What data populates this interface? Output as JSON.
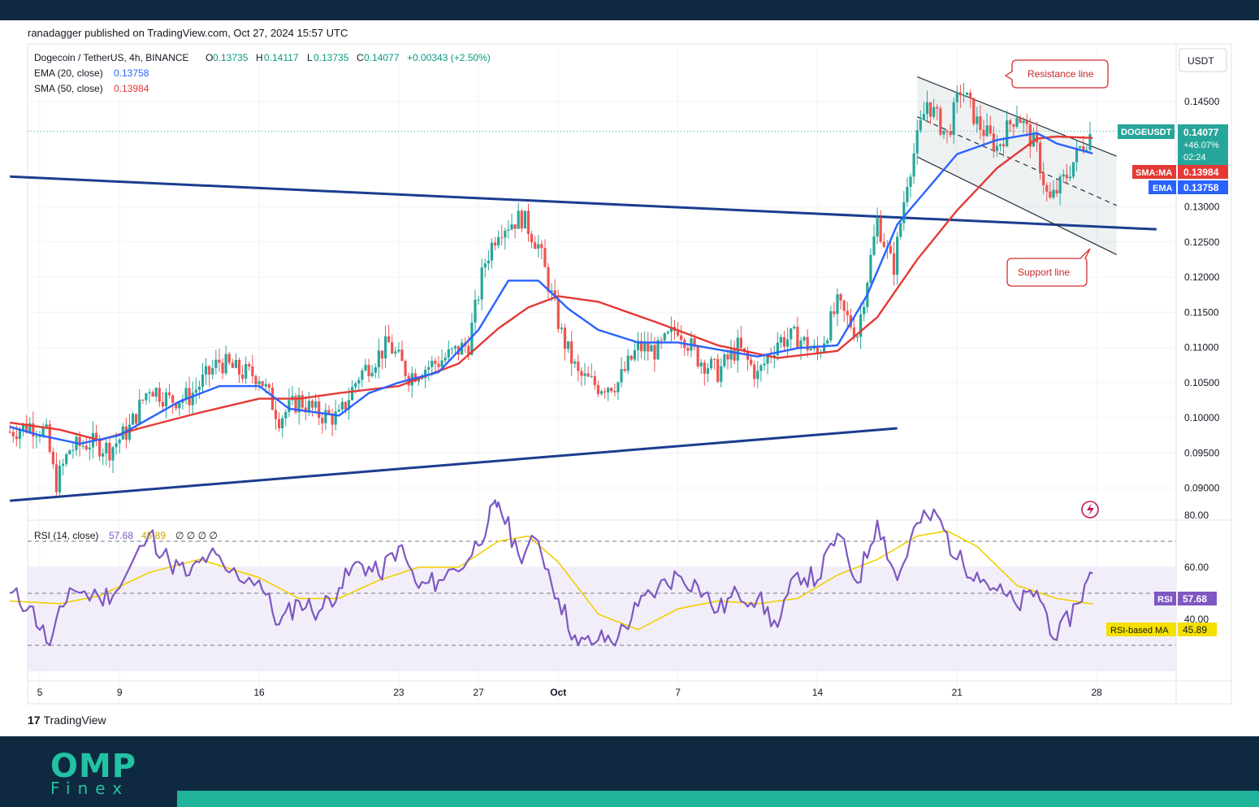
{
  "header": {
    "publisher": "ranadagger published on TradingView.com, Oct 27, 2024 15:57 UTC",
    "symbol": "Dogecoin / TetherUS, 4h, BINANCE",
    "o_label": "O",
    "o_value": "0.13735",
    "h_label": "H",
    "h_value": "0.14117",
    "l_label": "L",
    "l_value": "0.13735",
    "c_label": "C",
    "c_value": "0.14077",
    "change": "+0.00343 (+2.50%)",
    "ema_label": "EMA (20, close)",
    "ema_value": "0.13758",
    "sma_label": "SMA (50, close)",
    "sma_value": "0.13984",
    "rsi_label": "RSI (14, close)",
    "rsi_value": "57.68",
    "rsi_ma_value": "45.89",
    "rsi_extra": "∅ ∅ ∅ ∅"
  },
  "currency": "USDT",
  "price_tag": {
    "symbol": "DOGEUSDT",
    "price": "0.14077",
    "change": "+46.07%",
    "countdown": "02:24"
  },
  "sma_tag": {
    "label": "SMA:MA",
    "value": "0.13984"
  },
  "ema_tag": {
    "label": "EMA",
    "value": "0.13758"
  },
  "rsi_tag": {
    "label": "RSI",
    "value": "57.68"
  },
  "rsi_ma_tag": {
    "label": "RSI-based MA",
    "value": "45.89"
  },
  "annotations": {
    "resistance": "Resistance line",
    "support": "Support line"
  },
  "branding": {
    "tradingview": "TradingView",
    "omp": "OMP",
    "finex": "Finex"
  },
  "colors": {
    "ema": "#2962ff",
    "sma": "#e53935",
    "up": "#26a69a",
    "down": "#ef5350",
    "trendline": "#1a3d8f",
    "rsi": "#7e57c2",
    "rsi_ma": "#f0d000",
    "accent": "#1fb39a"
  },
  "chart_data": {
    "type": "candlestick",
    "price_axis": {
      "ticks": [
        "0.14500",
        "0.13000",
        "0.12500",
        "0.12000",
        "0.11500",
        "0.11000",
        "0.10500",
        "0.10000",
        "0.09500",
        "0.09000"
      ],
      "tick_values": [
        0.145,
        0.13,
        0.125,
        0.12,
        0.115,
        0.11,
        0.105,
        0.1,
        0.095,
        0.09
      ]
    },
    "time_axis": {
      "ticks": [
        "5",
        "9",
        "16",
        "23",
        "27",
        "Oct",
        "7",
        "14",
        "21",
        "28"
      ],
      "tick_days": [
        5,
        9,
        16,
        23,
        27,
        31,
        37,
        44,
        51,
        58
      ]
    },
    "rsi_axis": {
      "ticks": [
        "80.00",
        "60.00",
        "40.00"
      ],
      "tick_values": [
        80,
        60,
        40
      ],
      "bands": [
        70,
        50,
        30
      ]
    },
    "ema_series": [
      [
        3.5,
        0.0987
      ],
      [
        5,
        0.0975
      ],
      [
        7,
        0.0963
      ],
      [
        9,
        0.0975
      ],
      [
        12,
        0.1023
      ],
      [
        14,
        0.1045
      ],
      [
        16,
        0.1045
      ],
      [
        17.5,
        0.1013
      ],
      [
        20,
        0.1003
      ],
      [
        21.5,
        0.1035
      ],
      [
        23,
        0.105
      ],
      [
        25,
        0.1065
      ],
      [
        27,
        0.1125
      ],
      [
        28.5,
        0.1195
      ],
      [
        30,
        0.1195
      ],
      [
        31.5,
        0.1155
      ],
      [
        33,
        0.1125
      ],
      [
        35,
        0.1107
      ],
      [
        37,
        0.1107
      ],
      [
        39,
        0.1097
      ],
      [
        41,
        0.1087
      ],
      [
        43,
        0.1099
      ],
      [
        45,
        0.1103
      ],
      [
        46.5,
        0.1175
      ],
      [
        48,
        0.1275
      ],
      [
        49.5,
        0.1325
      ],
      [
        51,
        0.1375
      ],
      [
        53,
        0.1395
      ],
      [
        55,
        0.1405
      ],
      [
        56,
        0.139
      ],
      [
        57.8,
        0.1376
      ]
    ],
    "sma_series": [
      [
        3.5,
        0.0993
      ],
      [
        6,
        0.0983
      ],
      [
        8,
        0.0968
      ],
      [
        10,
        0.0985
      ],
      [
        13,
        0.1007
      ],
      [
        16,
        0.1027
      ],
      [
        18,
        0.1027
      ],
      [
        20,
        0.1035
      ],
      [
        23,
        0.1045
      ],
      [
        26,
        0.1077
      ],
      [
        28,
        0.1127
      ],
      [
        29.5,
        0.1157
      ],
      [
        31,
        0.1173
      ],
      [
        33,
        0.1165
      ],
      [
        36,
        0.1135
      ],
      [
        39,
        0.1103
      ],
      [
        42,
        0.1085
      ],
      [
        45,
        0.1095
      ],
      [
        47,
        0.1143
      ],
      [
        49,
        0.1225
      ],
      [
        51,
        0.1295
      ],
      [
        53,
        0.1355
      ],
      [
        55,
        0.1397
      ],
      [
        56,
        0.14
      ],
      [
        57.8,
        0.1398
      ]
    ],
    "price_path": [
      [
        3.5,
        0.098
      ],
      [
        4.5,
        0.099
      ],
      [
        5.3,
        0.098
      ],
      [
        5.8,
        0.0905
      ],
      [
        6.5,
        0.0955
      ],
      [
        7.5,
        0.0965
      ],
      [
        8.5,
        0.0955
      ],
      [
        9.5,
        0.0985
      ],
      [
        10.5,
        0.1045
      ],
      [
        11.5,
        0.1025
      ],
      [
        12.5,
        0.103
      ],
      [
        14,
        0.108
      ],
      [
        15,
        0.1065
      ],
      [
        16,
        0.106
      ],
      [
        17,
        0.1
      ],
      [
        18,
        0.1025
      ],
      [
        19,
        0.1005
      ],
      [
        20,
        0.1
      ],
      [
        21,
        0.106
      ],
      [
        22.5,
        0.1105
      ],
      [
        23.5,
        0.106
      ],
      [
        25,
        0.108
      ],
      [
        26.5,
        0.1105
      ],
      [
        27.3,
        0.122
      ],
      [
        28,
        0.127
      ],
      [
        29.2,
        0.1285
      ],
      [
        30,
        0.1245
      ],
      [
        30.6,
        0.118
      ],
      [
        31.2,
        0.1115
      ],
      [
        32,
        0.106
      ],
      [
        33,
        0.1045
      ],
      [
        34,
        0.105
      ],
      [
        35,
        0.11
      ],
      [
        36,
        0.1095
      ],
      [
        37,
        0.113
      ],
      [
        38,
        0.1085
      ],
      [
        39,
        0.1065
      ],
      [
        40,
        0.11
      ],
      [
        41,
        0.106
      ],
      [
        42,
        0.111
      ],
      [
        43,
        0.1115
      ],
      [
        44,
        0.109
      ],
      [
        45,
        0.116
      ],
      [
        46,
        0.112
      ],
      [
        47,
        0.128
      ],
      [
        47.8,
        0.121
      ],
      [
        48.5,
        0.134
      ],
      [
        49.5,
        0.145
      ],
      [
        50.5,
        0.14
      ],
      [
        51.2,
        0.147
      ],
      [
        52,
        0.142
      ],
      [
        53,
        0.1385
      ],
      [
        54,
        0.1435
      ],
      [
        55,
        0.138
      ],
      [
        55.6,
        0.1305
      ],
      [
        56.5,
        0.1345
      ],
      [
        57.2,
        0.1385
      ],
      [
        57.8,
        0.1408
      ]
    ],
    "trendlines": [
      {
        "name": "upper-triangle",
        "from": [
          3.5,
          0.1343
        ],
        "to": [
          61,
          0.1268
        ]
      },
      {
        "name": "lower-triangle",
        "from": [
          3.5,
          0.0882
        ],
        "to": [
          48,
          0.0985
        ]
      },
      {
        "name": "resistance",
        "from": [
          49,
          0.1485
        ],
        "to": [
          59,
          0.1372
        ]
      },
      {
        "name": "support",
        "from": [
          49,
          0.1371
        ],
        "to": [
          59,
          0.1232
        ]
      },
      {
        "name": "mid-channel",
        "from": [
          49,
          0.1428
        ],
        "to": [
          59,
          0.1302
        ]
      }
    ],
    "rsi_series": [
      [
        3.5,
        50
      ],
      [
        4.5,
        45
      ],
      [
        5.5,
        30
      ],
      [
        6.5,
        52
      ],
      [
        8,
        48
      ],
      [
        9,
        52
      ],
      [
        10.5,
        73
      ],
      [
        11.5,
        62
      ],
      [
        12.5,
        57
      ],
      [
        13.5,
        65
      ],
      [
        14.5,
        58
      ],
      [
        16,
        55
      ],
      [
        17,
        38
      ],
      [
        18,
        47
      ],
      [
        19,
        43
      ],
      [
        20,
        52
      ],
      [
        21,
        62
      ],
      [
        22,
        57
      ],
      [
        23,
        68
      ],
      [
        24,
        52
      ],
      [
        25,
        55
      ],
      [
        26.5,
        63
      ],
      [
        27.5,
        78
      ],
      [
        28,
        85
      ],
      [
        29,
        65
      ],
      [
        30,
        70
      ],
      [
        31,
        48
      ],
      [
        32,
        30
      ],
      [
        33,
        32
      ],
      [
        34,
        33
      ],
      [
        35,
        45
      ],
      [
        36,
        52
      ],
      [
        37,
        57
      ],
      [
        38,
        53
      ],
      [
        39,
        43
      ],
      [
        40,
        50
      ],
      [
        41,
        48
      ],
      [
        42,
        37
      ],
      [
        43,
        58
      ],
      [
        44,
        55
      ],
      [
        45,
        73
      ],
      [
        46,
        54
      ],
      [
        47,
        78
      ],
      [
        48,
        55
      ],
      [
        49,
        77
      ],
      [
        50,
        80
      ],
      [
        51,
        63
      ],
      [
        52,
        58
      ],
      [
        53,
        51
      ],
      [
        54,
        45
      ],
      [
        55,
        51
      ],
      [
        56,
        32
      ],
      [
        57,
        46
      ],
      [
        57.8,
        57.68
      ]
    ],
    "rsi_ma_series": [
      [
        3.5,
        47
      ],
      [
        6,
        46
      ],
      [
        8,
        49
      ],
      [
        10.5,
        58
      ],
      [
        13,
        63
      ],
      [
        16,
        56
      ],
      [
        18,
        48
      ],
      [
        20,
        48
      ],
      [
        22,
        55
      ],
      [
        24,
        60
      ],
      [
        26,
        60
      ],
      [
        28,
        70
      ],
      [
        29.5,
        72
      ],
      [
        31,
        62
      ],
      [
        33,
        42
      ],
      [
        35,
        36
      ],
      [
        37,
        44
      ],
      [
        39,
        47
      ],
      [
        41,
        46
      ],
      [
        43,
        48
      ],
      [
        45,
        57
      ],
      [
        47,
        63
      ],
      [
        49,
        72
      ],
      [
        50.5,
        74
      ],
      [
        52,
        68
      ],
      [
        54,
        53
      ],
      [
        56,
        48
      ],
      [
        57.8,
        45.89
      ]
    ]
  }
}
